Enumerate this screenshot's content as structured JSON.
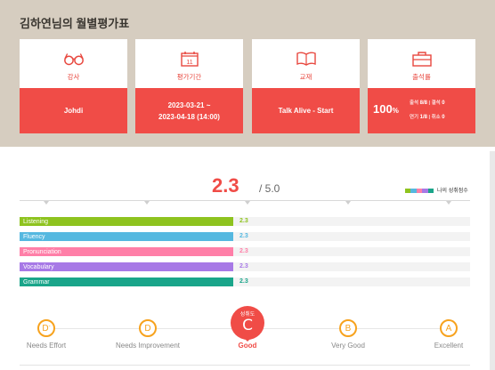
{
  "page": {
    "title": "김하연님의 월별평가표"
  },
  "cards": [
    {
      "icon": "glasses-icon",
      "label": "강사",
      "value_lines": [
        "Johdi"
      ]
    },
    {
      "icon": "calendar-icon",
      "label": "평가기간",
      "icon_text": "11",
      "value_lines": [
        "2023-03-21 ~",
        "2023-04-18 (14:00)"
      ]
    },
    {
      "icon": "book-icon",
      "label": "교재",
      "value_lines": [
        "Talk Alive - Start"
      ]
    }
  ],
  "attendance": {
    "icon": "briefcase-icon",
    "label": "출석률",
    "percent": "100",
    "percent_unit": "%",
    "present_label": "출석",
    "present_value": "8/8",
    "absent_label": "결석",
    "absent_value": "0",
    "late_label": "연기",
    "late_value": "1/8",
    "cancel_label": "취소",
    "cancel_value": "0"
  },
  "score": {
    "value": "2.3",
    "max": "/ 5.0",
    "legend_label": "나의 성취점수",
    "legend_colors": [
      "#8ec31f",
      "#55b8e0",
      "#ff7fa8",
      "#a779e6",
      "#1aa58a"
    ]
  },
  "chart_data": {
    "type": "bar",
    "categories": [
      "Listening",
      "Fluency",
      "Pronunciation",
      "Vocabulary",
      "Grammar"
    ],
    "values": [
      2.3,
      2.3,
      2.3,
      2.3,
      2.3
    ],
    "value_labels": [
      "2.3",
      "2.3",
      "2.3",
      "2.3",
      "2.3"
    ],
    "colors": [
      "#8ec31f",
      "#55b8e0",
      "#ff7fa8",
      "#a779e6",
      "#1aa58a"
    ],
    "xlim": [
      0,
      5
    ]
  },
  "grades": {
    "active_caption": "성취도",
    "items": [
      {
        "letter": "D",
        "sup": "-",
        "name": "Needs Effort"
      },
      {
        "letter": "D",
        "sup": "",
        "name": "Needs Improvement"
      },
      {
        "letter": "C",
        "sup": "",
        "name": "Good",
        "active": true
      },
      {
        "letter": "B",
        "sup": "",
        "name": "Very Good"
      },
      {
        "letter": "A",
        "sup": "",
        "name": "Excellent"
      }
    ]
  }
}
